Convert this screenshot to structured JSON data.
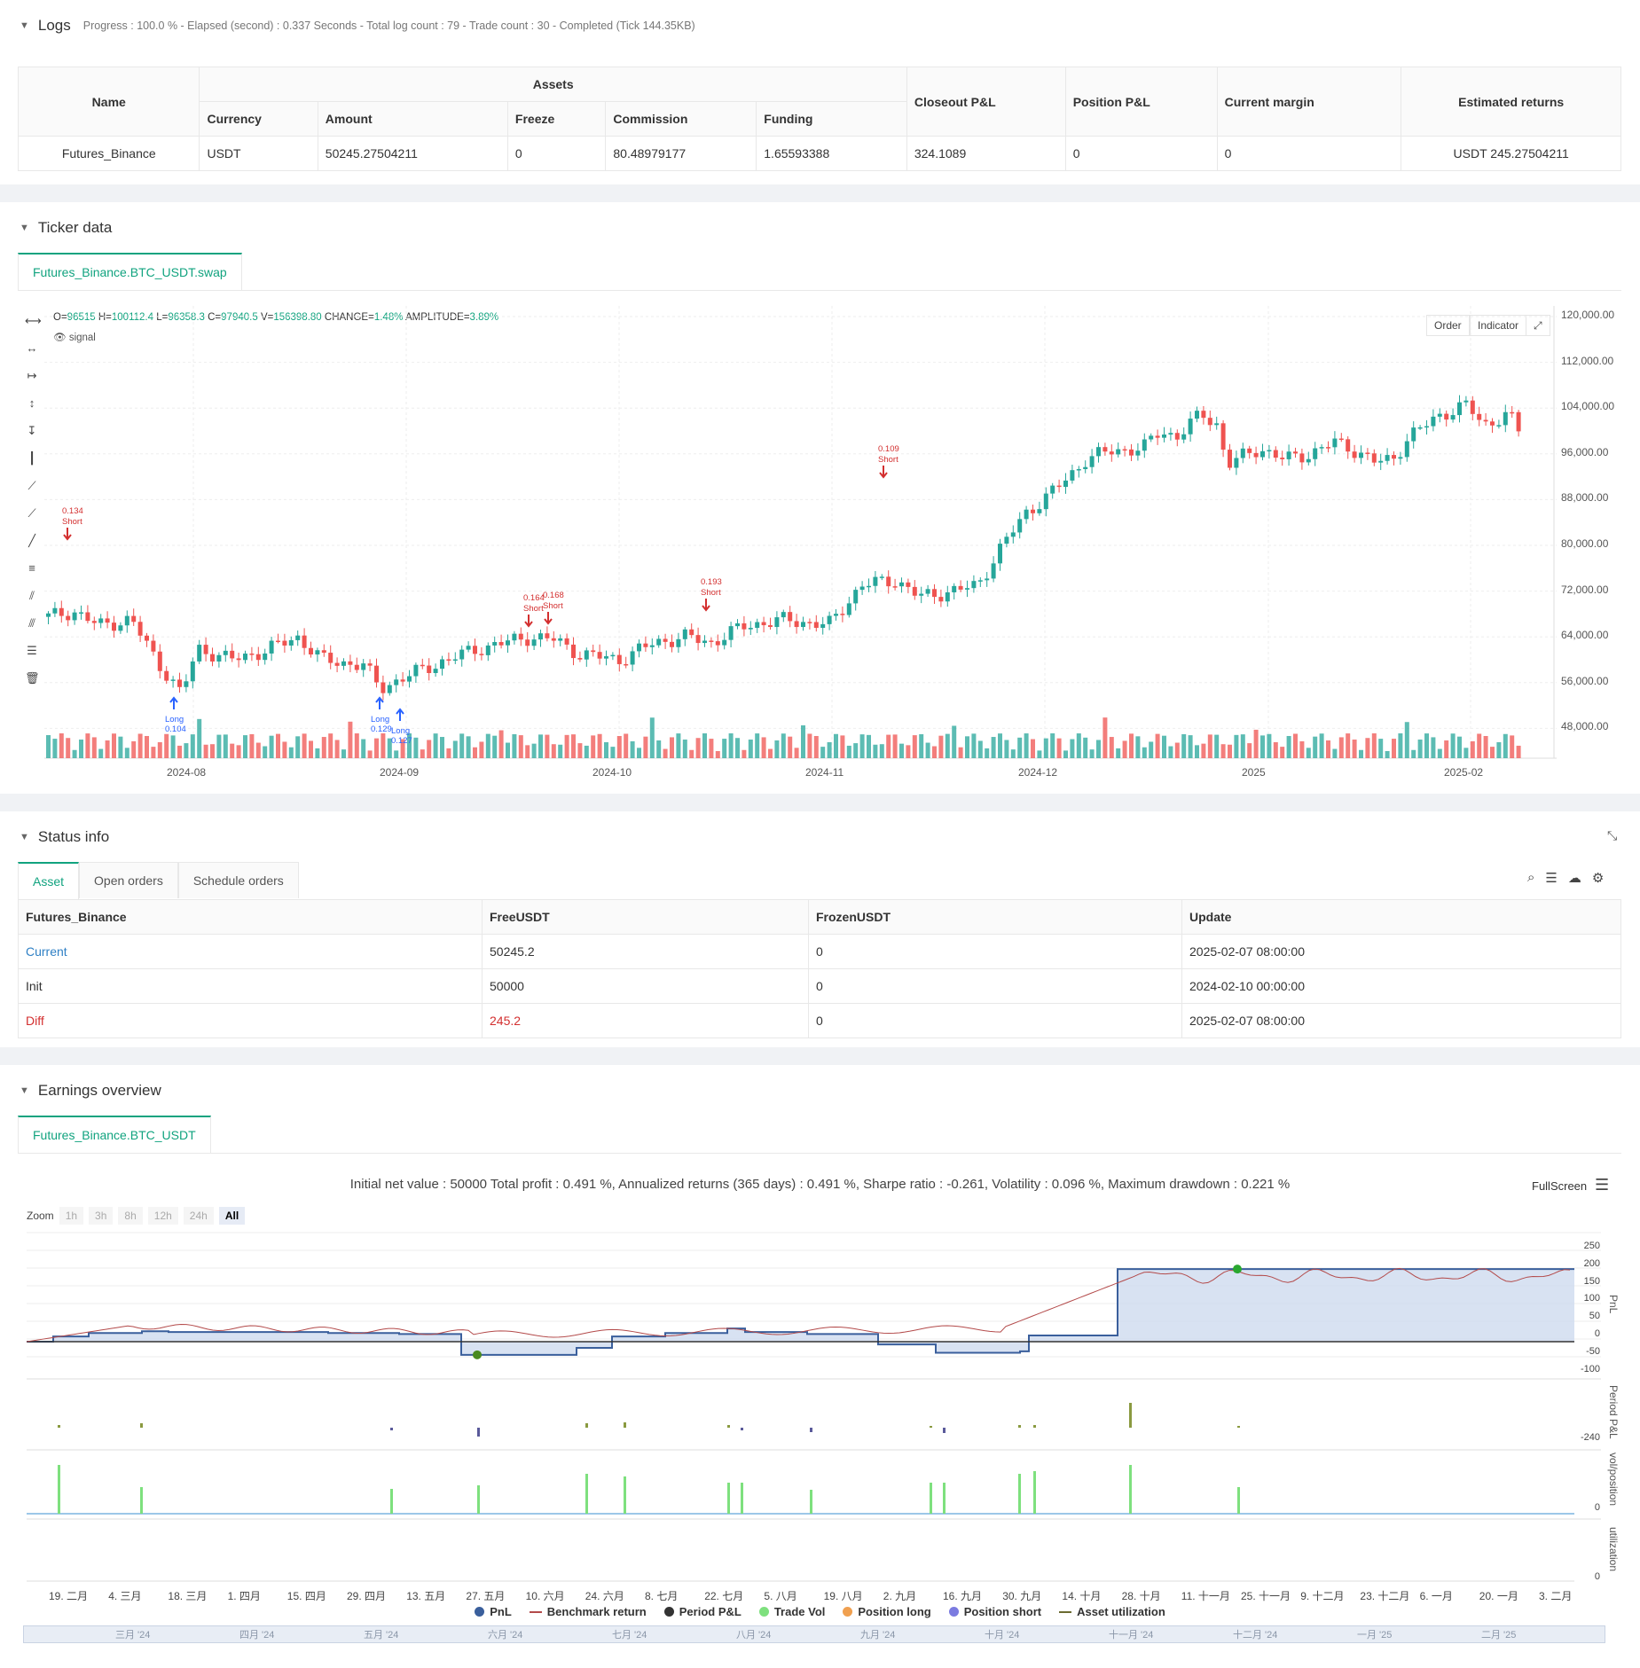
{
  "logs": {
    "title": "Logs",
    "meta": "Progress : 100.0 % - Elapsed (second) : 0.337  Seconds - Total log count : 79 - Trade count : 30 - Completed (Tick 144.35KB)",
    "headers": {
      "name": "Name",
      "assets": "Assets",
      "currency": "Currency",
      "amount": "Amount",
      "freeze": "Freeze",
      "commission": "Commission",
      "funding": "Funding",
      "closeout": "Closeout P&L",
      "position": "Position P&L",
      "margin": "Current margin",
      "returns": "Estimated returns"
    },
    "row": {
      "name": "Futures_Binance",
      "currency": "USDT",
      "amount": "50245.27504211",
      "freeze": "0",
      "commission": "80.48979177",
      "funding": "1.65593388",
      "closeout": "324.1089",
      "position": "0",
      "margin": "0",
      "returns": "USDT 245.27504211"
    }
  },
  "ticker": {
    "title": "Ticker data",
    "tab": "Futures_Binance.BTC_USDT.swap",
    "ohlc": {
      "o": "96515",
      "h": "100112.4",
      "l": "96358.3",
      "c": "97940.5",
      "v": "156398.80",
      "change": "1.48%",
      "amplitude": "3.89%"
    },
    "labels": {
      "o": "O=",
      "h": "H=",
      "l": "L=",
      "c": "C=",
      "v": "V=",
      "change": "CHANGE=",
      "amplitude": "AMPLITUDE="
    },
    "signal": "signal",
    "btn_order": "Order",
    "btn_indicator": "Indicator",
    "y_ticks": [
      "120,000.00",
      "112,000.00",
      "104,000.00",
      "96,000.00",
      "88,000.00",
      "80,000.00",
      "72,000.00",
      "64,000.00",
      "56,000.00",
      "48,000.00"
    ],
    "x_ticks": [
      "2024-08",
      "2024-09",
      "2024-10",
      "2024-11",
      "2024-12",
      "2025",
      "2025-02"
    ],
    "markers": [
      {
        "kind": "Short",
        "qty": "0.134"
      },
      {
        "kind": "Long",
        "qty": "0.104"
      },
      {
        "kind": "Long",
        "qty": "0.129"
      },
      {
        "kind": "Long",
        "qty": "0.127"
      },
      {
        "kind": "Short",
        "qty": "0.164"
      },
      {
        "kind": "Short",
        "qty": "0.168"
      },
      {
        "kind": "Short",
        "qty": "0.193"
      },
      {
        "kind": "Short",
        "qty": "0.109"
      }
    ],
    "colors": {
      "up": "#26a69a",
      "down": "#ef5350",
      "long": "#2962ff",
      "short": "#d32f2f"
    }
  },
  "status": {
    "title": "Status info",
    "tabs": [
      "Asset",
      "Open orders",
      "Schedule orders"
    ],
    "headers": [
      "Futures_Binance",
      "FreeUSDT",
      "FrozenUSDT",
      "Update"
    ],
    "rows": [
      [
        "Current",
        "50245.2",
        "0",
        "2025-02-07 08:00:00"
      ],
      [
        "Init",
        "50000",
        "0",
        "2024-02-10 00:00:00"
      ],
      [
        "Diff",
        "245.2",
        "0",
        "2025-02-07 08:00:00"
      ]
    ]
  },
  "earnings": {
    "title": "Earnings overview",
    "tab": "Futures_Binance.BTC_USDT",
    "summary": "Initial net value : 50000  Total profit : 0.491 %, Annualized returns (365 days) : 0.491 %, Sharpe ratio : -0.261, Volatility : 0.096 %, Maximum drawdown : 0.221 %",
    "fullscreen": "FullScreen",
    "zoom_label": "Zoom",
    "zoom": [
      "1h",
      "3h",
      "8h",
      "12h",
      "24h",
      "All"
    ],
    "pnl_ticks": [
      "250",
      "200",
      "150",
      "100",
      "50",
      "0",
      "-50",
      "-100"
    ],
    "period_tick": "-240",
    "vol_tick": "0",
    "util_tick": "0",
    "side_labels": [
      "PnL",
      "Period P&L",
      "vol/position",
      "utilization"
    ],
    "x_ticks": [
      "19. 二月",
      "4. 三月",
      "18. 三月",
      "1. 四月",
      "15. 四月",
      "29. 四月",
      "13. 五月",
      "27. 五月",
      "10. 六月",
      "24. 六月",
      "8. 七月",
      "22. 七月",
      "5. 八月",
      "19. 八月",
      "2. 九月",
      "16. 九月",
      "30. 九月",
      "14. 十月",
      "28. 十月",
      "11. 十一月",
      "25. 十一月",
      "9. 十二月",
      "23. 十二月",
      "6. 一月",
      "20. 一月",
      "3. 二月"
    ],
    "nav_ticks": [
      "三月 '24",
      "四月 '24",
      "五月 '24",
      "六月 '24",
      "七月 '24",
      "八月 '24",
      "九月 '24",
      "十月 '24",
      "十一月 '24",
      "十二月 '24",
      "一月 '25",
      "二月 '25"
    ],
    "legend": [
      {
        "name": "PnL",
        "color": "#3a5f9c",
        "shape": "dot"
      },
      {
        "name": "Benchmark return",
        "color": "#b34a4a",
        "shape": "line"
      },
      {
        "name": "Period P&L",
        "color": "#333333",
        "shape": "dot"
      },
      {
        "name": "Trade Vol",
        "color": "#7ee07e",
        "shape": "dot"
      },
      {
        "name": "Position long",
        "color": "#f0a050",
        "shape": "dot"
      },
      {
        "name": "Position short",
        "color": "#7b7be0",
        "shape": "dot"
      },
      {
        "name": "Asset utilization",
        "color": "#6b6b30",
        "shape": "line"
      }
    ]
  }
}
